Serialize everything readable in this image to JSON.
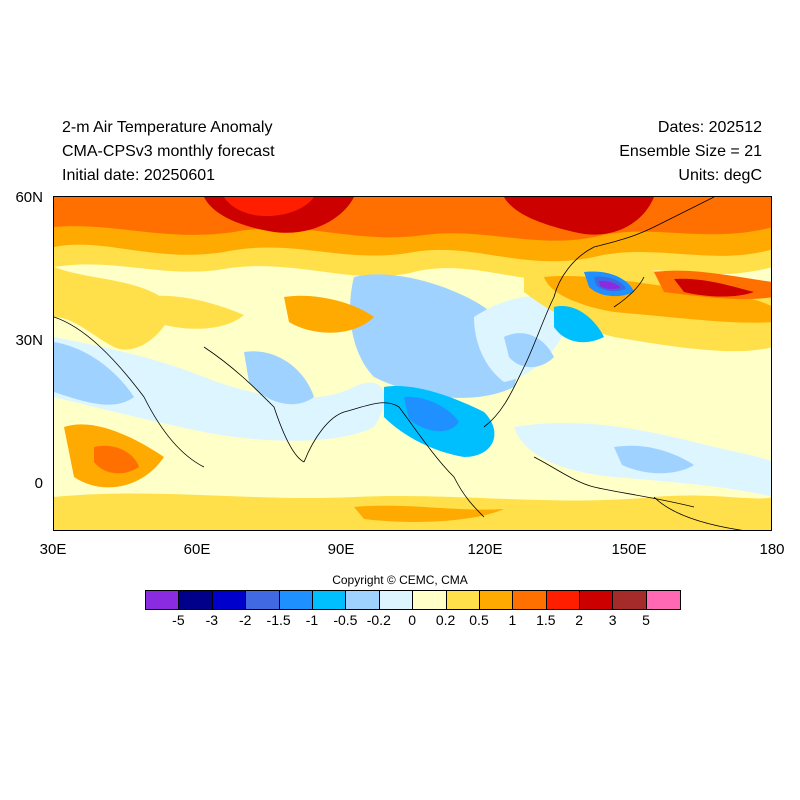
{
  "header": {
    "title_line1": "2-m Air Temperature Anomaly",
    "title_line2": "CMA-CPSv3 monthly forecast",
    "title_line3": "Initial date: 20250601",
    "dates": "Dates: 202512",
    "ensemble": "Ensemble Size = 21",
    "units": "Units: degC"
  },
  "map": {
    "region": "East Asia / Western Pacific / Indian Ocean",
    "lat_ticks": [
      "60N",
      "30N",
      "0"
    ],
    "lon_ticks": [
      "30E",
      "60E",
      "90E",
      "120E",
      "150E",
      "180"
    ],
    "lat_range": [
      -10,
      60
    ],
    "lon_range": [
      30,
      180
    ],
    "variable": "2-m air temperature anomaly"
  },
  "copyright": "Copyright © CEMC, CMA",
  "colorbar": {
    "colors": [
      "#8a2be2",
      "#00008b",
      "#0000cd",
      "#4169e1",
      "#1e90ff",
      "#00bfff",
      "#a0d2ff",
      "#dcf5ff",
      "#ffffc8",
      "#ffe04a",
      "#ffaa00",
      "#ff7000",
      "#ff1e00",
      "#cd0000",
      "#a52a2a",
      "#ff69b4"
    ],
    "labels": [
      "-5",
      "-3",
      "-2",
      "-1.5",
      "-1",
      "-0.5",
      "-0.2",
      "0",
      "0.2",
      "0.5",
      "1",
      "1.5",
      "2",
      "3",
      "5"
    ]
  }
}
